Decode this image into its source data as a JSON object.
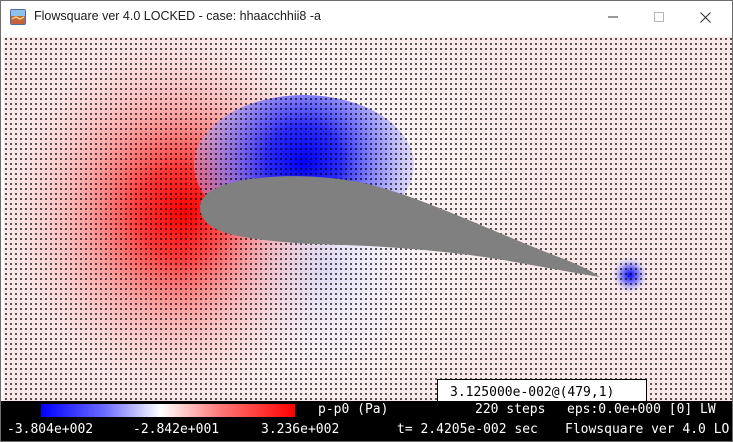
{
  "window": {
    "title": "Flowsquare ver 4.0 LOCKED - case: hhaacchhii8 -a"
  },
  "colors": {
    "negative_pressure": "#0000ff",
    "neutral": "#ffffff",
    "positive_pressure": "#ff0000",
    "airfoil": "#808080",
    "background_field": "#fbe9ea",
    "statusbar": "#000000"
  },
  "icons": {
    "app": "flowsquare-app-icon",
    "minimize": "minimize-icon",
    "maximize": "maximize-icon",
    "close": "close-icon"
  },
  "viewer": {
    "readout": "3.125000e-002@(479,1)"
  },
  "status": {
    "variable_label": "p-p0 (Pa)",
    "steps": "220 steps",
    "eps": "eps:0.0e+000 [0] LW",
    "colorbar_min": "-3.804e+002",
    "colorbar_mid": "-2.842e+001",
    "colorbar_max": "3.236e+002",
    "time": "t= 2.4205e-002 sec",
    "program": "Flowsquare ver 4.0 LO"
  }
}
